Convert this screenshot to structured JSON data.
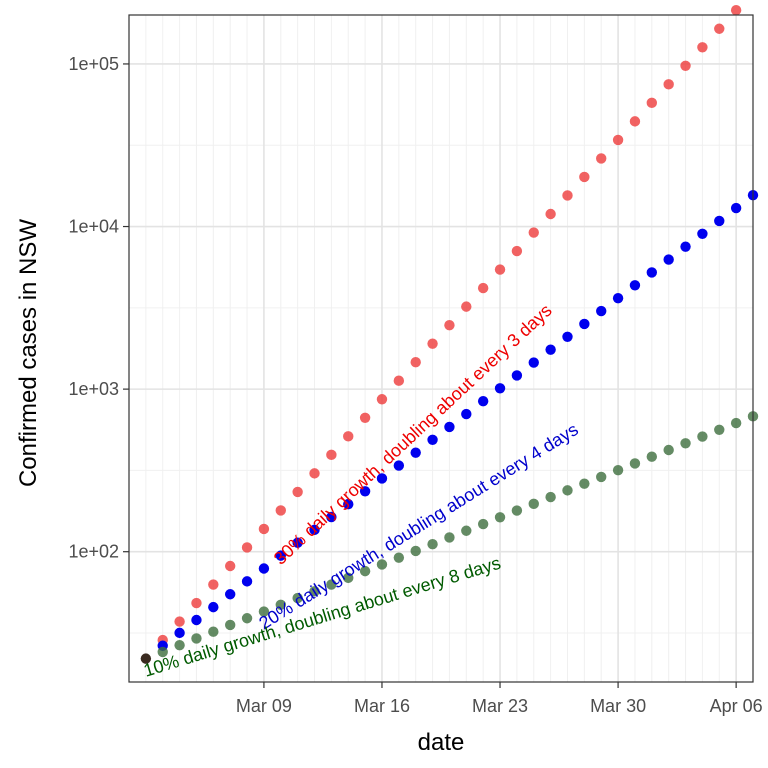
{
  "chart_data": {
    "type": "scatter",
    "xlabel": "date",
    "ylabel": "Confirmed cases in NSW",
    "x_start_date": "2020-03-02",
    "x_days": 36,
    "xlim": [
      "2020-03-01",
      "2020-04-07"
    ],
    "ylim": [
      15.8,
      200000
    ],
    "log_y": true,
    "grid": true,
    "x_ticks": [
      {
        "date": "2020-03-09",
        "label": "Mar 09"
      },
      {
        "date": "2020-03-16",
        "label": "Mar 16"
      },
      {
        "date": "2020-03-23",
        "label": "Mar 23"
      },
      {
        "date": "2020-03-30",
        "label": "Mar 30"
      },
      {
        "date": "2020-04-06",
        "label": "Apr 06"
      }
    ],
    "y_ticks": [
      {
        "value": 100,
        "label": "1e+02"
      },
      {
        "value": 1000,
        "label": "1e+03"
      },
      {
        "value": 10000,
        "label": "1e+04"
      },
      {
        "value": 100000,
        "label": "1e+05"
      }
    ],
    "start_point": {
      "date": "2020-03-02",
      "value": 22,
      "color": "#3a2a20"
    },
    "series": [
      {
        "rate": 0.3,
        "start": 22,
        "color": "#ee3b3b",
        "opacity": 0.8
      },
      {
        "rate": 0.2,
        "start": 22,
        "color": "#0000ee",
        "opacity": 1.0
      },
      {
        "rate": 0.1,
        "start": 22,
        "color": "#3d6e3d",
        "opacity": 0.8
      }
    ],
    "annotations": [
      {
        "text": "30% daily growth, doubling about every 3 days",
        "color": "#ee0000",
        "anchor_date": "2020-03-10",
        "anchor_value": 82,
        "angle": -43
      },
      {
        "text": "20% daily growth, doubling about every 4 days",
        "color": "#0000cc",
        "anchor_date": "2020-03-09",
        "anchor_value": 33,
        "angle": -32
      },
      {
        "text": "10% daily growth, doubling about every 8 days",
        "color": "#005a00",
        "anchor_date": "2020-03-02",
        "anchor_value": 17,
        "angle": -17
      }
    ]
  }
}
